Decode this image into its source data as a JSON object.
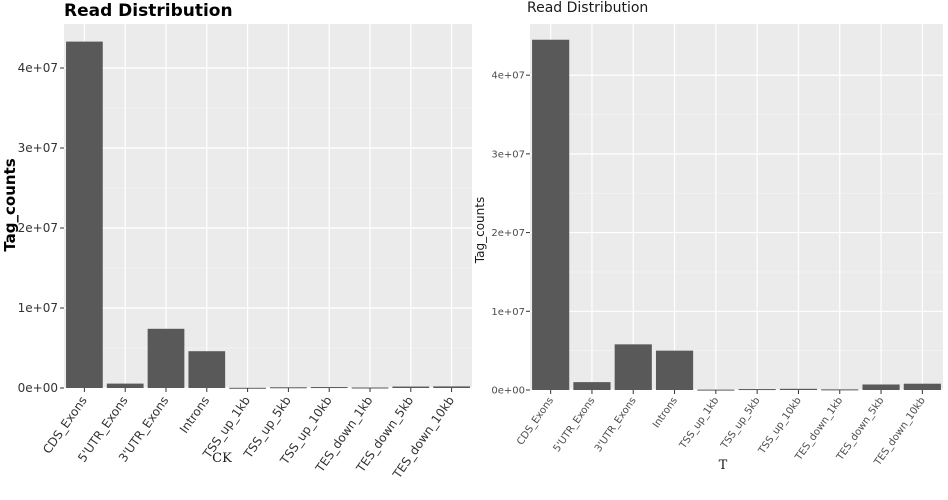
{
  "chart_data": [
    {
      "type": "bar",
      "title": "Read Distribution",
      "xlabel": "CK",
      "ylabel": "Tag_counts",
      "categories": [
        "CDS_Exons",
        "5'UTR_Exons",
        "3'UTR_Exons",
        "Introns",
        "TSS_up_1kb",
        "TSS_up_5kb",
        "TSS_up_10kb",
        "TES_down_1kb",
        "TES_down_5kb",
        "TES_down_10kb"
      ],
      "values": [
        43300000,
        550000,
        7400000,
        4600000,
        30000,
        90000,
        120000,
        60000,
        180000,
        200000
      ],
      "yticks": [
        0,
        10000000,
        20000000,
        30000000,
        40000000
      ],
      "ytick_labels": [
        "0e+00",
        "1e+07",
        "2e+07",
        "3e+07",
        "4e+07"
      ],
      "ylim": [
        0,
        45500000
      ],
      "grid": true,
      "bar_color": "#595959",
      "panel_color": "#ebebeb"
    },
    {
      "type": "bar",
      "title": "Read Distribution",
      "xlabel": "T",
      "ylabel": "Tag_counts",
      "categories": [
        "CDS_Exons",
        "5'UTR_Exons",
        "3'UTR_Exons",
        "Introns",
        "TSS_up_1kb",
        "TSS_up_5kb",
        "TSS_up_10kb",
        "TES_down_1kb",
        "TES_down_5kb",
        "TES_down_10kb"
      ],
      "values": [
        44500000,
        1000000,
        5800000,
        5000000,
        50000,
        120000,
        150000,
        80000,
        700000,
        800000
      ],
      "yticks": [
        0,
        10000000,
        20000000,
        30000000,
        40000000
      ],
      "ytick_labels": [
        "0e+00",
        "1e+07",
        "2e+07",
        "3e+07",
        "4e+07"
      ],
      "ylim": [
        0,
        46500000
      ],
      "grid": true,
      "bar_color": "#595959",
      "panel_color": "#ebebeb"
    }
  ]
}
